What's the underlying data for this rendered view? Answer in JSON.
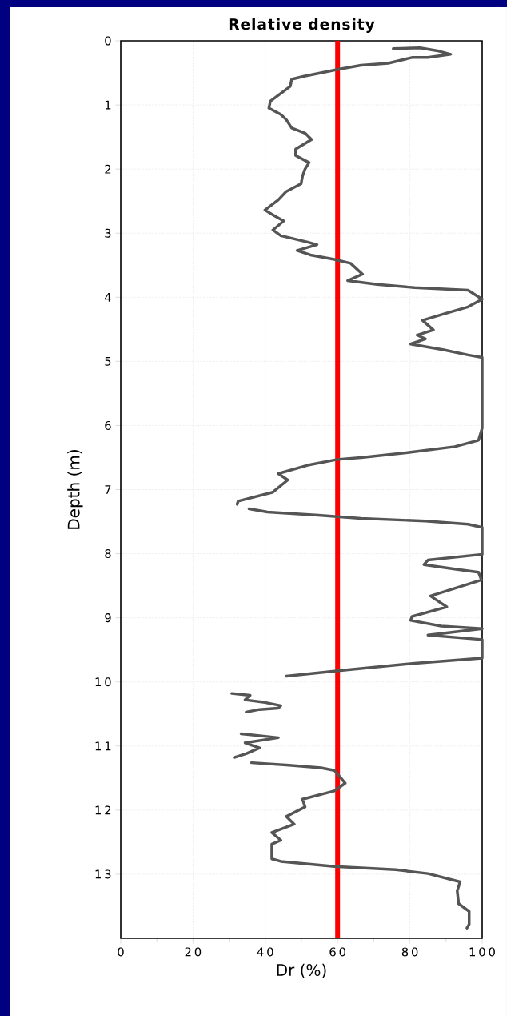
{
  "chart_data": {
    "type": "line",
    "title": "Relative density",
    "xlabel": "Dr (%)",
    "ylabel": "Depth (m)",
    "xlim": [
      0,
      100
    ],
    "xticks": [
      0,
      20,
      40,
      60,
      80,
      100
    ],
    "ylim": [
      14,
      0
    ],
    "yticks": [
      0,
      1,
      2,
      3,
      4,
      5,
      6,
      7,
      8,
      9,
      10,
      11,
      12,
      13
    ],
    "grid": true,
    "marker": "none",
    "line_style": "solid",
    "ref_lines": [
      {
        "axis": "x",
        "value": 60,
        "color": "#ff0000"
      }
    ],
    "series": [
      {
        "color": "#555555",
        "x": [
          75.4,
          82.8,
          88,
          91.3,
          85,
          80.6,
          74,
          66.5,
          60.6,
          56.2,
          51,
          47.3,
          46.9,
          41.4,
          41,
          44.3,
          45.8,
          47.3,
          51,
          52.8,
          48.4,
          48.4,
          52.1,
          51,
          50.3,
          49.9,
          45.8,
          43.6,
          39.9,
          42.5,
          45.1,
          42.1,
          44.3,
          51.7,
          54.3,
          48.8,
          52.5,
          59.1,
          63.6,
          66.9,
          62.8,
          71,
          81.3,
          96.1,
          100,
          96.1,
          89.4,
          83.5,
          86.5,
          82,
          84.3,
          80.2,
          89.4,
          96.1,
          100,
          100,
          100,
          99,
          92.4,
          79.8,
          66.5,
          59.9,
          51.7,
          43.6,
          46.2,
          42.1,
          32.5,
          32.2,
          null,
          35.5,
          40.6,
          54.7,
          66.5,
          84.3,
          96.1,
          100,
          100,
          85,
          83.9,
          92.4,
          99,
          99.8,
          92.4,
          85.7,
          90.2,
          80.6,
          80.2,
          88.7,
          100,
          85,
          100,
          100,
          81.3,
          61.3,
          45.8,
          null,
          30.7,
          35.8,
          34.4,
          39.9,
          44.3,
          43.6,
          38.4,
          34.7,
          null,
          33.3,
          43.6,
          34.4,
          38.4,
          34.7,
          31.4,
          null,
          36.2,
          46.6,
          55.4,
          59.1,
          62.1,
          59.1,
          50.3,
          51,
          45.8,
          48,
          41.8,
          44.3,
          41.8,
          41.8,
          44.3,
          59.1,
          76.1,
          85,
          93.9,
          93.1,
          93.5,
          96.4,
          96.4,
          95.8
        ],
        "values": [
          0.12,
          0.11,
          0.16,
          0.21,
          0.26,
          0.26,
          0.35,
          0.38,
          0.44,
          0.49,
          0.55,
          0.6,
          0.71,
          0.94,
          1.05,
          1.15,
          1.23,
          1.36,
          1.44,
          1.54,
          1.69,
          1.79,
          1.9,
          2.0,
          2.11,
          2.23,
          2.35,
          2.48,
          2.64,
          2.73,
          2.81,
          2.95,
          3.04,
          3.14,
          3.18,
          3.27,
          3.34,
          3.41,
          3.47,
          3.64,
          3.74,
          3.8,
          3.85,
          3.89,
          4.03,
          4.15,
          4.26,
          4.36,
          4.51,
          4.59,
          4.65,
          4.73,
          4.82,
          4.9,
          4.94,
          4.98,
          6.04,
          6.23,
          6.33,
          6.42,
          6.5,
          6.53,
          6.62,
          6.75,
          6.85,
          7.04,
          7.18,
          7.23,
          null,
          7.3,
          7.35,
          7.4,
          7.45,
          7.49,
          7.54,
          7.59,
          8.01,
          8.1,
          8.17,
          8.24,
          8.29,
          8.41,
          8.54,
          8.66,
          8.83,
          8.98,
          9.04,
          9.13,
          9.17,
          9.27,
          9.34,
          9.63,
          9.71,
          9.82,
          9.91,
          null,
          10.18,
          10.21,
          10.28,
          10.32,
          10.37,
          10.41,
          10.43,
          10.47,
          null,
          10.81,
          10.87,
          10.95,
          11.03,
          11.12,
          11.18,
          null,
          11.26,
          11.3,
          11.34,
          11.38,
          11.58,
          11.7,
          11.83,
          11.95,
          12.1,
          12.22,
          12.35,
          12.47,
          12.53,
          12.76,
          12.8,
          12.88,
          12.93,
          12.99,
          13.12,
          13.26,
          13.46,
          13.58,
          13.78,
          13.84
        ]
      }
    ]
  }
}
